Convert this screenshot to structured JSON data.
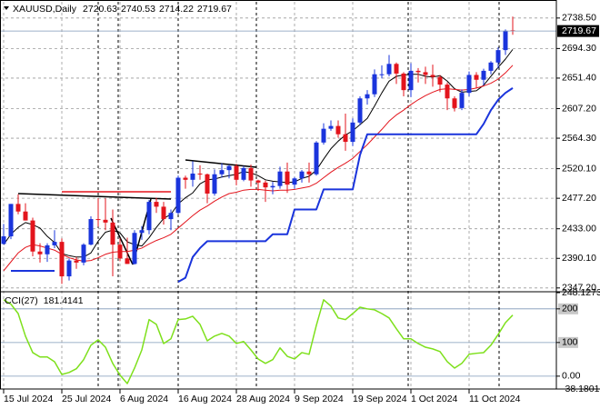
{
  "chart_data": [
    {
      "type": "candlestick",
      "title": "XAUUSD,Daily",
      "categories": [
        "15 Jul 2024",
        null,
        null,
        null,
        null,
        null,
        null,
        null,
        "25 Jul 2024",
        null,
        null,
        null,
        null,
        null,
        null,
        null,
        "6 Aug 2024",
        null,
        null,
        null,
        null,
        null,
        null,
        null,
        "16 Aug 2024",
        null,
        null,
        null,
        null,
        null,
        null,
        null,
        "28 Aug 2024",
        null,
        null,
        null,
        null,
        null,
        null,
        null,
        "9 Sep 2024",
        null,
        null,
        null,
        null,
        null,
        null,
        null,
        "19 Sep 2024",
        null,
        null,
        null,
        null,
        null,
        null,
        null,
        "1 Oct 2024",
        null,
        null,
        null,
        null,
        null,
        null,
        null,
        "11 Oct 2024",
        null,
        null,
        null,
        null,
        null,
        null
      ],
      "open": [
        2411,
        2422,
        2469,
        2458,
        2445,
        2400,
        2396,
        2409,
        2414,
        2364,
        2387,
        2384,
        2410,
        2447,
        2446,
        2442,
        2410,
        2390,
        2382,
        2427,
        2431,
        2472,
        2465,
        2447,
        2456,
        2507,
        2504,
        2513,
        2512,
        2484,
        2512,
        2518,
        2524,
        2504,
        2521,
        2503,
        2500,
        2493,
        2495,
        2516,
        2497,
        2506,
        2516,
        2512,
        2558,
        2578,
        2582,
        2570,
        2559,
        2587,
        2622,
        2628,
        2657,
        2657,
        2672,
        2658,
        2634,
        2662,
        2660,
        2656,
        2653,
        2642,
        2622,
        2608,
        2630,
        2656,
        2649,
        2662,
        2674,
        2692,
        2720.63
      ],
      "high": [
        2440,
        2469,
        2483,
        2470,
        2449,
        2412,
        2412,
        2431,
        2419,
        2390,
        2392,
        2412,
        2451,
        2477,
        2477,
        2461,
        2419,
        2420,
        2431,
        2437,
        2475,
        2478,
        2472,
        2461,
        2510,
        2510,
        2531,
        2525,
        2513,
        2519,
        2528,
        2526,
        2527,
        2524,
        2526,
        2504,
        2503,
        2501,
        2523,
        2529,
        2508,
        2518,
        2529,
        2560,
        2586,
        2590,
        2590,
        2600,
        2593,
        2625,
        2634,
        2664,
        2670,
        2685,
        2674,
        2660,
        2673,
        2666,
        2668,
        2671,
        2656,
        2645,
        2625,
        2635,
        2661,
        2660,
        2665,
        2676,
        2696,
        2722,
        2740.53
      ],
      "low": [
        2410,
        2418,
        2454,
        2445,
        2393,
        2384,
        2385,
        2405,
        2353,
        2358,
        2375,
        2380,
        2409,
        2436,
        2431,
        2364,
        2386,
        2382,
        2381,
        2417,
        2425,
        2456,
        2439,
        2431,
        2454,
        2491,
        2494,
        2504,
        2470,
        2481,
        2507,
        2506,
        2496,
        2502,
        2494,
        2488,
        2472,
        2483,
        2491,
        2485,
        2491,
        2500,
        2500,
        2510,
        2555,
        2575,
        2565,
        2546,
        2553,
        2583,
        2613,
        2624,
        2651,
        2654,
        2643,
        2625,
        2624,
        2645,
        2643,
        2639,
        2631,
        2605,
        2603,
        2605,
        2625,
        2637,
        2641,
        2657,
        2666,
        2685,
        2714.22
      ],
      "close": [
        2422,
        2469,
        2458,
        2445,
        2400,
        2396,
        2409,
        2414,
        2364,
        2387,
        2384,
        2410,
        2447,
        2446,
        2442,
        2410,
        2390,
        2382,
        2427,
        2431,
        2472,
        2465,
        2447,
        2456,
        2507,
        2504,
        2513,
        2512,
        2484,
        2512,
        2518,
        2524,
        2504,
        2521,
        2503,
        2500,
        2493,
        2495,
        2516,
        2497,
        2506,
        2516,
        2512,
        2558,
        2578,
        2582,
        2570,
        2559,
        2587,
        2622,
        2628,
        2657,
        2657,
        2672,
        2658,
        2634,
        2662,
        2660,
        2656,
        2653,
        2642,
        2622,
        2608,
        2630,
        2656,
        2649,
        2662,
        2674,
        2692,
        2720,
        2719.67
      ],
      "up_color": "#1a34dc",
      "down_color": "#e3141c",
      "series": [
        {
          "color": "#000000",
          "values": [
            2410,
            2425,
            2435,
            2442,
            2439,
            2434,
            2422,
            2413,
            2397,
            2394,
            2392,
            2392,
            2398,
            2415,
            2428,
            2431,
            2427,
            2414,
            2410,
            2408,
            2420,
            2435,
            2448,
            2454,
            2469,
            2478,
            2485,
            2498,
            2504,
            2505,
            2508,
            2510,
            2512,
            2516,
            2514,
            2510,
            2504,
            2502,
            2501,
            2500,
            2501,
            2506,
            2509,
            2518,
            2534,
            2549,
            2560,
            2569,
            2575,
            2584,
            2593,
            2611,
            2630,
            2647,
            2654,
            2656,
            2657,
            2657,
            2654,
            2653,
            2655,
            2647,
            2636,
            2631,
            2632,
            2633,
            2641,
            2654,
            2667,
            2679,
            2693
          ]
        },
        {
          "color": "#e3141c",
          "values": [
            2372,
            2385,
            2398,
            2406,
            2410,
            2408,
            2405,
            2402,
            2396,
            2391,
            2388,
            2386,
            2387,
            2391,
            2396,
            2399,
            2400,
            2400,
            2402,
            2405,
            2411,
            2416,
            2420,
            2425,
            2434,
            2443,
            2452,
            2460,
            2466,
            2473,
            2479,
            2484,
            2486,
            2489,
            2490,
            2490,
            2489,
            2488,
            2489,
            2489,
            2490,
            2492,
            2494,
            2499,
            2507,
            2515,
            2522,
            2528,
            2535,
            2545,
            2555,
            2566,
            2577,
            2589,
            2598,
            2605,
            2613,
            2620,
            2626,
            2631,
            2635,
            2636,
            2635,
            2634,
            2635,
            2637,
            2640,
            2644,
            2650,
            2659,
            2670
          ]
        },
        {
          "color": "#1a34dc",
          "values": [
            null,
            2372,
            2372,
            2372,
            2372,
            2372,
            2372,
            2372,
            null,
            null,
            null,
            null,
            null,
            null,
            null,
            null,
            null,
            null,
            null,
            null,
            null,
            null,
            null,
            null,
            2356,
            2362,
            2392,
            2405,
            2415,
            2415,
            2415,
            2415,
            2415,
            2415,
            2415,
            2415,
            2415,
            2425,
            2425,
            2425,
            2461,
            2461,
            2461,
            2461,
            2490,
            2490,
            2490,
            2490,
            2490,
            2540,
            2570,
            2570,
            2570,
            2570,
            2570,
            2570,
            2570,
            2570,
            2570,
            2570,
            2570,
            2570,
            2570,
            2570,
            2570,
            2570,
            2585,
            2605,
            2620,
            2630,
            2637
          ]
        }
      ],
      "ylim": [
        2343,
        2762
      ],
      "yticks": [
        {
          "value": 2738.5,
          "label": "2738.50"
        },
        {
          "value": 2694.3,
          "label": "2694.30"
        },
        {
          "value": 2651.4,
          "label": "2651.40"
        },
        {
          "value": 2607.2,
          "label": "2607.20"
        },
        {
          "value": 2564.3,
          "label": "2564.30"
        },
        {
          "value": 2520.1,
          "label": "2520.10"
        },
        {
          "value": 2477.2,
          "label": "2477.20"
        },
        {
          "value": 2433,
          "label": "2433.00"
        },
        {
          "value": 2390.1,
          "label": "2390.10"
        },
        {
          "value": 2347.2,
          "label": "2347.20"
        }
      ],
      "grid": true
    },
    {
      "type": "line",
      "title": "CCI(27)",
      "series": [
        {
          "color": "#7ee01c",
          "values": [
            227,
            214,
            186,
            119,
            70,
            57,
            57,
            43,
            5,
            11,
            22,
            49,
            92,
            108,
            86,
            38,
            3,
            -22,
            24,
            78,
            168,
            154,
            97,
            111,
            168,
            170,
            178,
            154,
            105,
            119,
            127,
            119,
            97,
            103,
            78,
            51,
            38,
            49,
            84,
            59,
            51,
            70,
            65,
            151,
            227,
            208,
            173,
            168,
            186,
            205,
            200,
            197,
            186,
            173,
            141,
            111,
            111,
            97,
            86,
            81,
            73,
            43,
            24,
            38,
            65,
            68,
            70,
            92,
            124,
            159,
            181.4141
          ]
        }
      ],
      "ylim": [
        -38.1801,
        248.1273
      ],
      "yticks": [
        248.1273,
        200,
        100,
        {
          "value": 0,
          "label": "0.00"
        },
        -38.1801
      ]
    }
  ]
}
